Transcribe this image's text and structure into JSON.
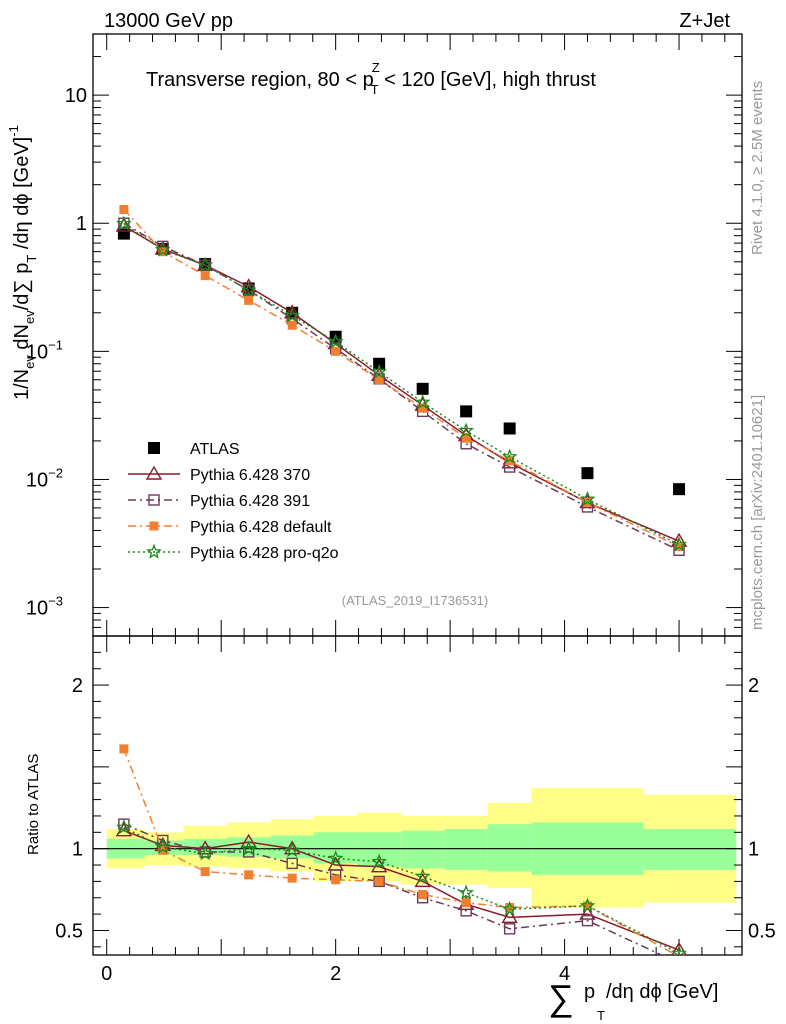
{
  "header": {
    "left": "13000 GeV pp",
    "right": "Z+Jet",
    "title": "Transverse region, 80 < p",
    "title_sup": "Z",
    "title_sub": "T",
    "title_tail": " < 120 [GeV], high thrust",
    "watermark": "(ATLAS_2019_I1736531)",
    "side_top": "Rivet 4.1.0, ≥ 2.5M events",
    "side_bottom": "mcplots.cern.ch [arXiv:2401.10621]"
  },
  "axes": {
    "ylabel_main": "1/N",
    "ylabel_main_sub1": "ev",
    "ylabel_main_mid": " dN",
    "ylabel_main_sub2": "ev",
    "ylabel_main_tail": "/d∑ p",
    "ylabel_main_sub3": "T",
    "ylabel_main_end": " /dη dϕ  [GeV]",
    "ylabel_main_exp": "-1",
    "ylabel_ratio": "Ratio to ATLAS",
    "xlabel_sum": "∑",
    "xlabel_p": "p",
    "xlabel_sub": "T",
    "xlabel_tail": "/dη dϕ [GeV]",
    "main_ticks": [
      {
        "value": 10,
        "base": "10",
        "exp": ""
      },
      {
        "value": 1,
        "base": "1",
        "exp": ""
      },
      {
        "value": 0.1,
        "base": "10",
        "exp": "−1"
      },
      {
        "value": 0.01,
        "base": "10",
        "exp": "−2"
      },
      {
        "value": 0.001,
        "base": "10",
        "exp": "−3"
      }
    ],
    "ratio_ticks": [
      {
        "value": 2,
        "label": "2"
      },
      {
        "value": 1,
        "label": "1"
      },
      {
        "value": 0.5,
        "label": "0.5"
      }
    ],
    "x_ticks": [
      {
        "value": 0,
        "label": "0"
      },
      {
        "value": 2,
        "label": "2"
      },
      {
        "value": 4,
        "label": "4"
      }
    ]
  },
  "legend": [
    {
      "label": "ATLAS",
      "color": "#000000",
      "marker": "square-filled"
    },
    {
      "label": "Pythia 6.428 370",
      "color": "#8b1a2b",
      "marker": "triangle-open"
    },
    {
      "label": "Pythia 6.428 391",
      "color": "#6b3a5a",
      "marker": "square-open"
    },
    {
      "label": "Pythia 6.428 default",
      "color": "#f08030",
      "marker": "square-filled-small"
    },
    {
      "label": "Pythia 6.428 pro-q2o",
      "color": "#1a8a1a",
      "marker": "star-open"
    }
  ],
  "chart_data": {
    "type": "scatter",
    "x_range": [
      -0.12,
      5.55
    ],
    "main_ylim": [
      0.0006,
      30
    ],
    "main_yscale": "log",
    "ratio_ylim": [
      0.35,
      2.3
    ],
    "x": [
      0.15,
      0.49,
      0.86,
      1.24,
      1.62,
      2.0,
      2.38,
      2.76,
      3.14,
      3.52,
      4.2,
      5.0
    ],
    "band_edges": [
      0.0,
      0.33,
      0.67,
      1.05,
      1.43,
      1.81,
      2.19,
      2.57,
      2.95,
      3.33,
      3.71,
      4.69,
      5.5
    ],
    "bands": {
      "inner_low": [
        0.94,
        0.96,
        0.96,
        0.95,
        0.94,
        0.91,
        0.89,
        0.88,
        0.87,
        0.86,
        0.84,
        0.87
      ],
      "inner_high": [
        1.06,
        1.05,
        1.06,
        1.07,
        1.08,
        1.1,
        1.1,
        1.11,
        1.12,
        1.15,
        1.16,
        1.12
      ],
      "outer_low": [
        0.88,
        0.9,
        0.89,
        0.88,
        0.86,
        0.8,
        0.8,
        0.78,
        0.78,
        0.76,
        0.64,
        0.67
      ],
      "outer_high": [
        1.12,
        1.1,
        1.14,
        1.16,
        1.18,
        1.2,
        1.22,
        1.2,
        1.2,
        1.28,
        1.37,
        1.33
      ]
    },
    "series": [
      {
        "name": "ATLAS",
        "values": [
          0.83,
          0.63,
          0.48,
          0.31,
          0.2,
          0.13,
          0.08,
          0.051,
          0.034,
          0.025,
          0.0112,
          0.0084
        ]
      },
      {
        "name": "Pythia 6.428 370",
        "values": [
          0.95,
          0.63,
          0.47,
          0.32,
          0.2,
          0.115,
          0.065,
          0.038,
          0.022,
          0.0135,
          0.0066,
          0.0033
        ]
      },
      {
        "name": "Pythia 6.428 391",
        "values": [
          1.0,
          0.66,
          0.47,
          0.3,
          0.18,
          0.105,
          0.061,
          0.034,
          0.019,
          0.0125,
          0.0061,
          0.0028
        ]
      },
      {
        "name": "Pythia 6.428 default",
        "values": [
          1.28,
          0.6,
          0.39,
          0.25,
          0.16,
          0.1,
          0.06,
          0.036,
          0.021,
          0.014,
          0.0066,
          0.003
        ]
      },
      {
        "name": "Pythia 6.428 pro-q2o",
        "values": [
          0.99,
          0.62,
          0.47,
          0.3,
          0.19,
          0.119,
          0.069,
          0.04,
          0.024,
          0.015,
          0.007,
          0.0031
        ]
      }
    ],
    "ratios": [
      {
        "name": "Pythia 6.428 370",
        "values": [
          1.11,
          1.02,
          1.0,
          1.04,
          1.0,
          0.9,
          0.89,
          0.8,
          0.66,
          0.58,
          0.6,
          0.38
        ]
      },
      {
        "name": "Pythia 6.428 391",
        "values": [
          1.15,
          1.05,
          0.98,
          0.98,
          0.91,
          0.84,
          0.8,
          0.7,
          0.62,
          0.51,
          0.56,
          0.3
        ]
      },
      {
        "name": "Pythia 6.428 default",
        "values": [
          1.61,
          0.99,
          0.86,
          0.84,
          0.82,
          0.81,
          0.8,
          0.72,
          0.67,
          0.64,
          0.65,
          0.34
        ]
      },
      {
        "name": "Pythia 6.428 pro-q2o",
        "values": [
          1.13,
          1.01,
          0.97,
          1.0,
          0.99,
          0.94,
          0.92,
          0.83,
          0.73,
          0.63,
          0.65,
          0.36
        ]
      }
    ]
  }
}
